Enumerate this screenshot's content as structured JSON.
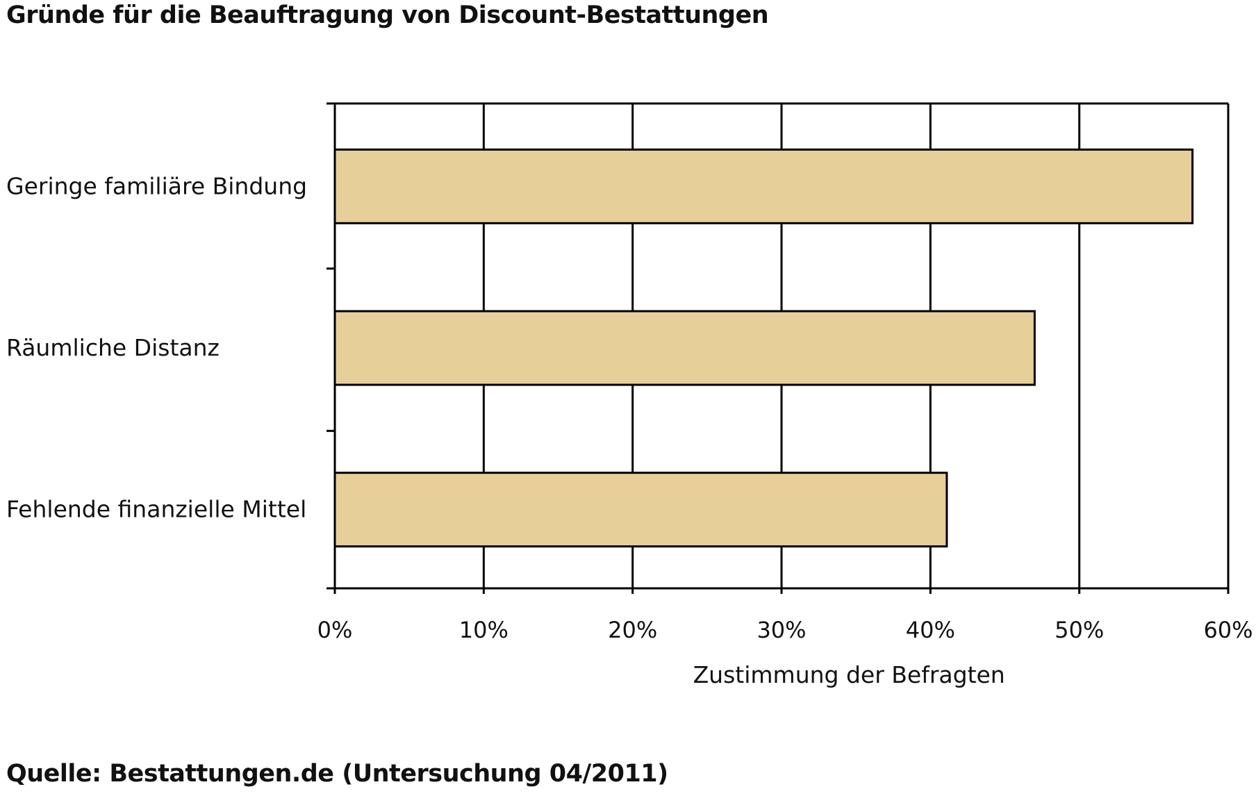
{
  "chart_data": {
    "type": "bar",
    "orientation": "horizontal",
    "title": "Gründe für die Beauftragung von Discount-Bestattungen",
    "categories": [
      "Geringe familiäre Bindung",
      "Räumliche Distanz",
      "Fehlende finanzielle Mittel"
    ],
    "values": [
      57.6,
      47.0,
      41.1
    ],
    "xlabel": "Zustimmung der Befragten",
    "ylabel": "",
    "xlim": [
      0,
      60
    ],
    "x_ticks": [
      "0%",
      "10%",
      "20%",
      "30%",
      "40%",
      "50%",
      "60%"
    ],
    "grid": true,
    "legend": "none",
    "bar_color": "#e6cf98",
    "source": "Quelle: Bestattungen.de (Untersuchung 04/2011)"
  }
}
